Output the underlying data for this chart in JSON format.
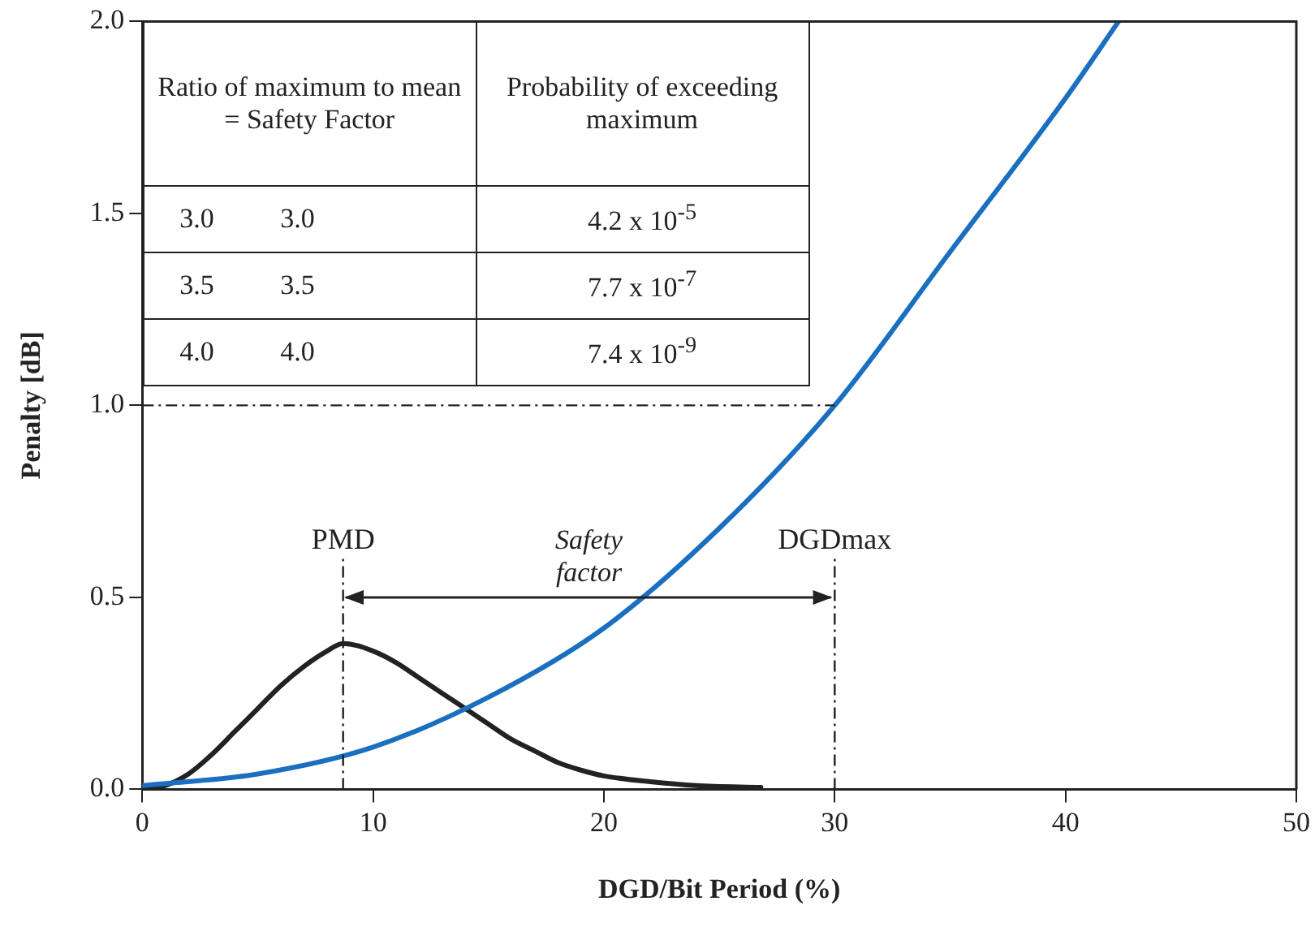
{
  "chart_data": {
    "type": "line",
    "xlabel": "DGD/Bit Period (%)",
    "ylabel": "Penalty [dB]",
    "xlim": [
      0,
      50
    ],
    "xticks": [
      0,
      10,
      20,
      30,
      40,
      50
    ],
    "ylim": [
      0,
      2
    ],
    "yticks": [
      {
        "value": 0,
        "label": "0.0"
      },
      {
        "value": 0.5,
        "label": "0.5"
      },
      {
        "value": 1,
        "label": "1.0"
      },
      {
        "value": 1.5,
        "label": "1.5"
      },
      {
        "value": 2,
        "label": "2.0"
      }
    ],
    "grid": false,
    "legend": false,
    "marker": "none",
    "line_style": "solid",
    "series": [
      {
        "color": "#1a6fc0",
        "x": [
          0,
          5,
          10,
          15,
          20,
          25,
          30,
          35,
          40,
          42.3
        ],
        "values": [
          0.01,
          0.04,
          0.11,
          0.24,
          0.42,
          0.68,
          1.0,
          1.4,
          1.8,
          2.0
        ]
      },
      {
        "color": "#222222",
        "x": [
          0,
          1,
          2,
          3,
          4,
          5,
          6,
          7,
          8,
          8.7,
          10,
          11,
          12,
          13,
          14,
          15,
          16,
          17,
          18,
          19,
          20,
          22,
          24,
          26.8
        ],
        "values": [
          0,
          0.01,
          0.04,
          0.09,
          0.15,
          0.21,
          0.27,
          0.32,
          0.36,
          0.38,
          0.36,
          0.33,
          0.29,
          0.25,
          0.21,
          0.17,
          0.13,
          0.1,
          0.07,
          0.05,
          0.035,
          0.02,
          0.01,
          0.005
        ]
      }
    ],
    "ref_lines": [
      {
        "axis": "x",
        "value": 8.7,
        "label": "PMD",
        "line_style": "dashed",
        "color": "#222222"
      },
      {
        "axis": "x",
        "value": 30,
        "label": "DGDmax",
        "line_style": "dashed",
        "color": "#222222"
      },
      {
        "axis": "y",
        "value": 1,
        "label": null,
        "line_style": "dashed",
        "color": "#222222"
      }
    ],
    "annotations": [
      "Safety factor",
      "Ratio of maximum to mean = Safety Factor",
      "Probability of exceeding maximum",
      "3.0",
      "3.0",
      "4.2 x 10$^{-5}$",
      "3.5",
      "3.5",
      "7.7 x 10$^{-7}$",
      "4.0",
      "4.0",
      "7.4 x 10$^{-9}$"
    ]
  }
}
